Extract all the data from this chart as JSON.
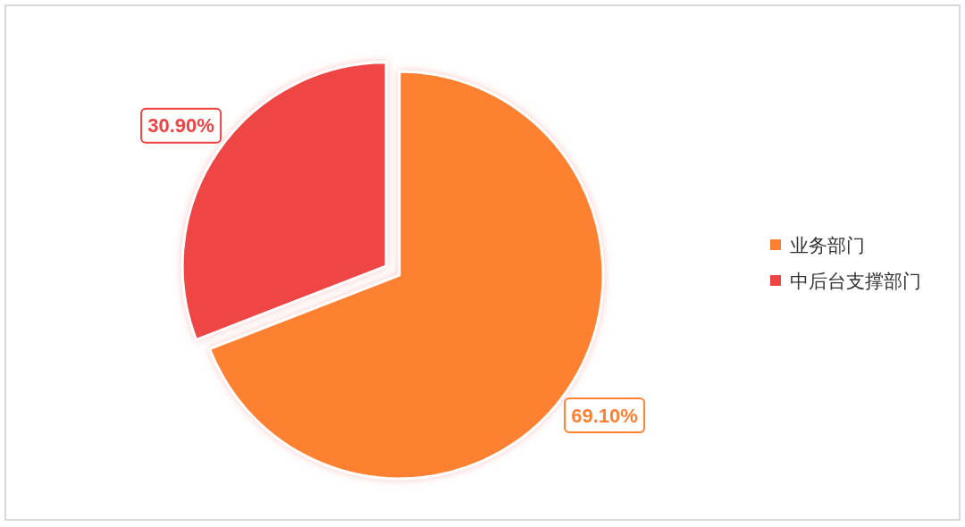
{
  "chart_data": {
    "type": "pie",
    "categories": [
      "业务部门",
      "中后台支撑部门"
    ],
    "values": [
      69.1,
      30.9
    ],
    "colors": [
      "#fe8133",
      "#ef4444"
    ],
    "value_labels": [
      "69.10%",
      "30.90%"
    ],
    "legend": "right"
  }
}
